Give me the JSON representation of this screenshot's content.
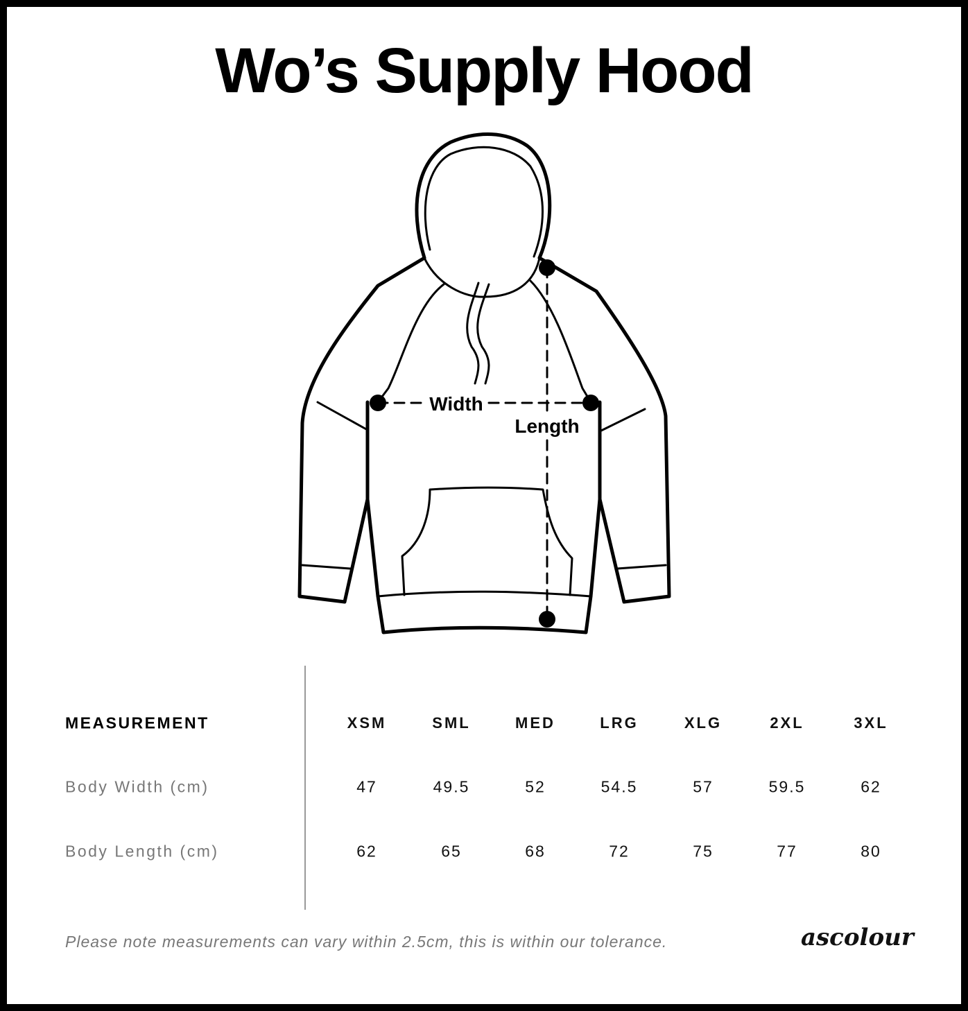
{
  "title": "Wo’s Supply Hood",
  "diagram": {
    "width_label": "Width",
    "length_label": "Length"
  },
  "table": {
    "header_label": "MEASUREMENT",
    "sizes": [
      "XSM",
      "SML",
      "MED",
      "LRG",
      "XLG",
      "2XL",
      "3XL"
    ],
    "rows": [
      {
        "label": "Body Width (cm)",
        "values": [
          "47",
          "49.5",
          "52",
          "54.5",
          "57",
          "59.5",
          "62"
        ]
      },
      {
        "label": "Body Length (cm)",
        "values": [
          "62",
          "65",
          "68",
          "72",
          "75",
          "77",
          "80"
        ]
      }
    ]
  },
  "note": "Please note measurements can vary within 2.5cm, this is within our tolerance.",
  "logo": "ascolour"
}
